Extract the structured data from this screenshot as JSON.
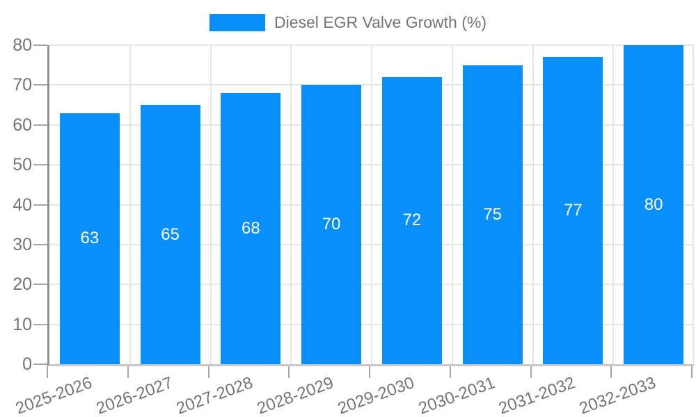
{
  "chart_data": {
    "type": "bar",
    "title": "",
    "xlabel": "",
    "ylabel": "",
    "legend": {
      "label": "Diesel EGR Valve Growth (%)",
      "position": "top-center"
    },
    "categories": [
      "2025-2026",
      "2026-2027",
      "2027-2028",
      "2028-2029",
      "2029-2030",
      "2030-2031",
      "2031-2032",
      "2032-2033"
    ],
    "values": [
      63,
      65,
      68,
      70,
      72,
      75,
      77,
      80
    ],
    "data_labels_shown": [
      63,
      65,
      68,
      70,
      72,
      75,
      77,
      80
    ],
    "ylim": [
      0,
      80
    ],
    "yticks": [
      0,
      10,
      20,
      30,
      40,
      50,
      60,
      70,
      80
    ],
    "grid": true,
    "colors": {
      "bar": "#0890f8",
      "bar_label": "#ffffff",
      "axis_text": "#757575",
      "legend_text": "#757575",
      "gridline": "#e6e6e6",
      "axis_line": "#909090",
      "tick": "#a6a6a6"
    }
  }
}
